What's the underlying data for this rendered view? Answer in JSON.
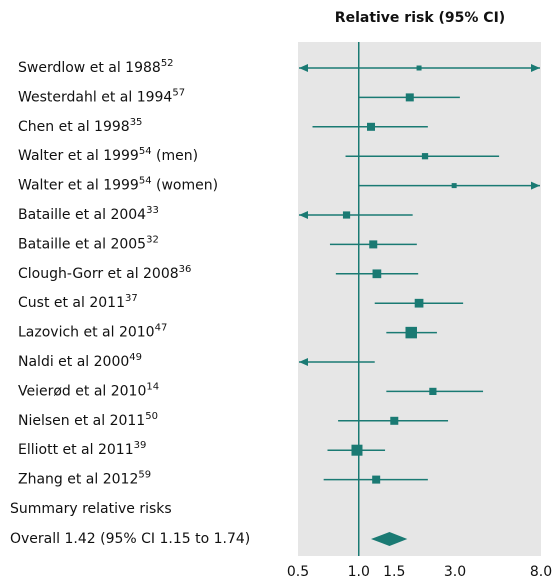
{
  "chart_data": {
    "type": "forest",
    "title": "Relative risk (95% CI)",
    "studies": [
      {
        "name": "Swerdlow et al 1988",
        "ref": "52",
        "value": 1.99,
        "lower": 0.4,
        "upper": 10,
        "weight": 1
      },
      {
        "name": "Westerdahl et al 1994",
        "ref": "57",
        "value": 1.79,
        "lower": 1.0,
        "upper": 3.17,
        "weight": 4
      },
      {
        "name": "Chen et al 1998",
        "ref": "35",
        "value": 1.15,
        "lower": 0.59,
        "upper": 2.2,
        "weight": 4
      },
      {
        "name": "Walter et al 1999",
        "ref": "54",
        "note": "(men)",
        "value": 2.13,
        "lower": 0.86,
        "upper": 4.96,
        "weight": 2
      },
      {
        "name": "Walter et al 1999",
        "ref": "54",
        "note": "(women)",
        "value": 2.97,
        "lower": 1.0,
        "upper": 10,
        "weight": 1
      },
      {
        "name": "Bataille et al 2004",
        "ref": "33",
        "value": 0.87,
        "lower": 0.4,
        "upper": 1.85,
        "weight": 3
      },
      {
        "name": "Bataille et al 2005",
        "ref": "32",
        "value": 1.18,
        "lower": 0.72,
        "upper": 1.94,
        "weight": 4
      },
      {
        "name": "Clough-Gorr et al 2008",
        "ref": "36",
        "value": 1.23,
        "lower": 0.77,
        "upper": 1.97,
        "weight": 5
      },
      {
        "name": "Cust et al 2011",
        "ref": "37",
        "value": 1.99,
        "lower": 1.2,
        "upper": 3.29,
        "weight": 5
      },
      {
        "name": "Lazovich et al 2010",
        "ref": "47",
        "value": 1.82,
        "lower": 1.37,
        "upper": 2.44,
        "weight": 10
      },
      {
        "name": "Naldi et al 2000",
        "ref": "49",
        "value": 0.45,
        "lower": 0.3,
        "upper": 1.2,
        "weight": 1
      },
      {
        "name": "Veierød et al 2010",
        "ref": "14",
        "value": 2.33,
        "lower": 1.37,
        "upper": 4.13,
        "weight": 3
      },
      {
        "name": "Nielsen et al 2011",
        "ref": "50",
        "value": 1.5,
        "lower": 0.79,
        "upper": 2.77,
        "weight": 4
      },
      {
        "name": "Elliott et al 2011",
        "ref": "39",
        "value": 0.98,
        "lower": 0.7,
        "upper": 1.35,
        "weight": 9
      },
      {
        "name": "Zhang et al 2012",
        "ref": "59",
        "value": 1.22,
        "lower": 0.67,
        "upper": 2.2,
        "weight": 4
      }
    ],
    "summary_heading": "Summary relative risks",
    "overall": {
      "label": "Overall 1.42 (95% CI 1.15 to 1.74)",
      "value": 1.42,
      "lower": 1.15,
      "upper": 1.74
    },
    "reference_line": 1,
    "xlim": [
      0.5,
      8
    ],
    "xticks": [
      0.5,
      {
        "value": 1,
        "label": "1.0"
      },
      1.5,
      {
        "value": 3,
        "label": "3.0"
      },
      {
        "value": 8,
        "label": "8.0"
      }
    ],
    "log_scale": true,
    "color": "#1a7a73"
  }
}
